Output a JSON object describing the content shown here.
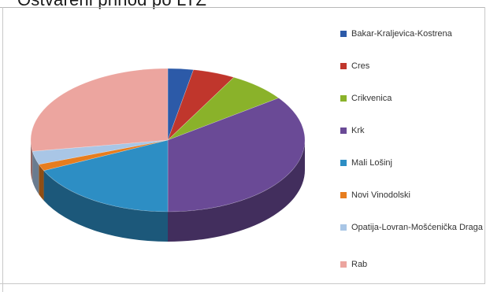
{
  "title_partial": "Ostvareni prihod po LTZ",
  "chart_data": {
    "type": "pie",
    "title": "",
    "legend_position": "right",
    "categories": [
      "Bakar-Kraljevica-Kostrena",
      "Cres",
      "Crikvenica",
      "Krk",
      "Mali Lošinj",
      "Novi Vinodolski",
      "Opatija-Lovran-Mošćenička Draga",
      "Rab"
    ],
    "values": [
      3,
      5,
      7,
      35,
      18,
      1.5,
      3,
      27.5
    ],
    "colors": [
      "#2c5aa8",
      "#c0362c",
      "#8ab22a",
      "#6a4a96",
      "#2d8ec4",
      "#e77d1e",
      "#a9c6e6",
      "#eca59f"
    ]
  }
}
